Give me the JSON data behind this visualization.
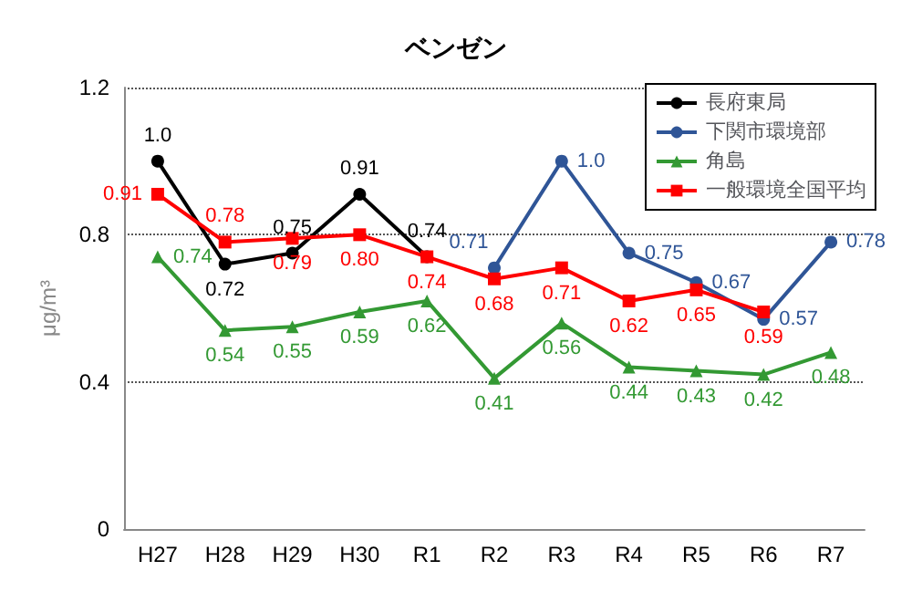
{
  "chart_data": {
    "type": "line",
    "title": "ベンゼン",
    "ylabel": "μg/m³",
    "categories": [
      "H27",
      "H28",
      "H29",
      "H30",
      "R1",
      "R2",
      "R3",
      "R4",
      "R5",
      "R6",
      "R7"
    ],
    "ylim": [
      0,
      1.2
    ],
    "yticks": [
      0,
      0.4,
      0.8,
      1.2
    ],
    "grid": "y",
    "legend": "top right",
    "series": [
      {
        "name": "長府東局",
        "color": "#000000",
        "marker": "circle",
        "values": [
          1.0,
          0.72,
          0.75,
          0.91,
          0.74,
          null,
          null,
          null,
          null,
          null,
          null
        ],
        "value_labels": [
          "1.0",
          "0.72",
          "0.75",
          "0.91",
          "0.74",
          null,
          null,
          null,
          null,
          null,
          null
        ]
      },
      {
        "name": "下関市環境部",
        "color": "#2f5597",
        "marker": "circle",
        "values": [
          null,
          null,
          null,
          null,
          null,
          0.71,
          1.0,
          0.75,
          0.67,
          0.57,
          0.78
        ],
        "value_labels": [
          null,
          null,
          null,
          null,
          null,
          "0.71",
          "1.0",
          "0.75",
          "0.67",
          "0.57",
          "0.78"
        ]
      },
      {
        "name": "角島",
        "color": "#339933",
        "marker": "triangle",
        "values": [
          0.74,
          0.54,
          0.55,
          0.59,
          0.62,
          0.41,
          0.56,
          0.44,
          0.43,
          0.42,
          0.48
        ],
        "value_labels": [
          "0.74",
          "0.54",
          "0.55",
          "0.59",
          "0.62",
          "0.41",
          "0.56",
          "0.44",
          "0.43",
          "0.42",
          "0.48"
        ]
      },
      {
        "name": "一般環境全国平均",
        "color": "#ff0000",
        "marker": "square",
        "values": [
          0.91,
          0.78,
          0.79,
          0.8,
          0.74,
          0.68,
          0.71,
          0.62,
          0.65,
          0.59,
          null
        ],
        "value_labels": [
          "0.91",
          "0.78",
          "0.79",
          "0.80",
          "0.74",
          "0.68",
          "0.71",
          "0.62",
          "0.65",
          "0.59",
          null
        ]
      }
    ]
  }
}
